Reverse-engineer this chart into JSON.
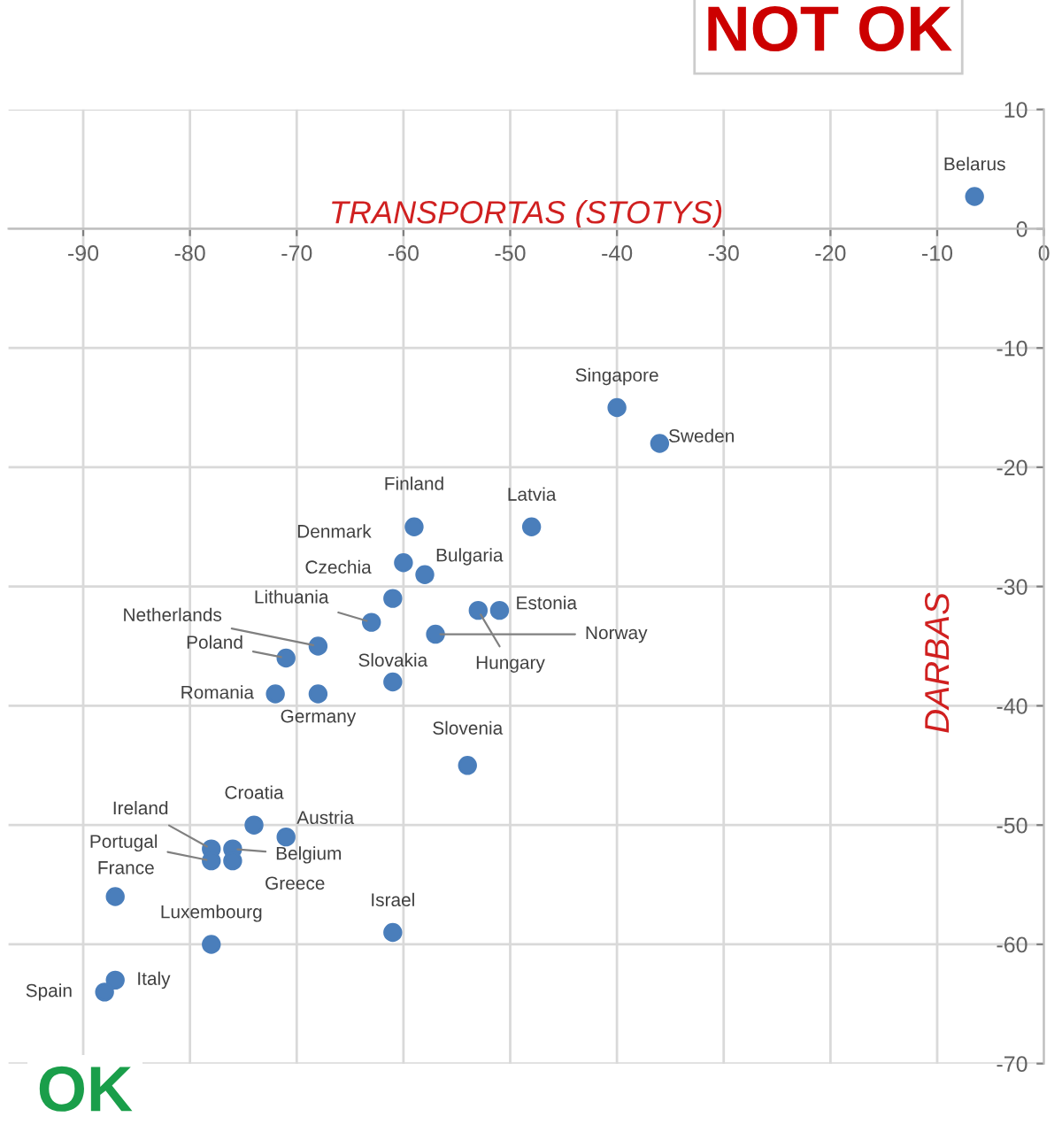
{
  "chart_data": {
    "type": "scatter",
    "xlabel": "TRANSPORTAS (STOTYS)",
    "ylabel": "DARBAS",
    "annotations": [
      "NOT OK",
      "OK"
    ],
    "xlim": [
      -97,
      0
    ],
    "ylim": [
      -70,
      10
    ],
    "xticks": [
      -90,
      -80,
      -70,
      -60,
      -50,
      -40,
      -30,
      -20,
      -10,
      0
    ],
    "yticks": [
      -70,
      -60,
      -50,
      -40,
      -30,
      -20,
      -10,
      0,
      10
    ],
    "grid": true,
    "marker": "circle",
    "legend": false,
    "series": [
      {
        "name": "Belarus",
        "color": "#4a7ebb",
        "x": [
          -6.5
        ],
        "values": [
          2.7
        ]
      },
      {
        "name": "Singapore",
        "color": "#4a7ebb",
        "x": [
          -40
        ],
        "values": [
          -15
        ]
      },
      {
        "name": "Sweden",
        "color": "#4a7ebb",
        "x": [
          -36
        ],
        "values": [
          -18
        ]
      },
      {
        "name": "Latvia",
        "color": "#4a7ebb",
        "x": [
          -48
        ],
        "values": [
          -25
        ]
      },
      {
        "name": "Finland",
        "color": "#4a7ebb",
        "x": [
          -59
        ],
        "values": [
          -25
        ]
      },
      {
        "name": "Denmark",
        "color": "#4a7ebb",
        "x": [
          -60
        ],
        "values": [
          -28
        ]
      },
      {
        "name": "Bulgaria",
        "color": "#4a7ebb",
        "x": [
          -58
        ],
        "values": [
          -29
        ]
      },
      {
        "name": "Czechia",
        "color": "#4a7ebb",
        "x": [
          -61
        ],
        "values": [
          -31
        ]
      },
      {
        "name": "Lithuania",
        "color": "#4a7ebb",
        "x": [
          -63
        ],
        "values": [
          -33
        ]
      },
      {
        "name": "Estonia",
        "color": "#4a7ebb",
        "x": [
          -51
        ],
        "values": [
          -32
        ]
      },
      {
        "name": "Hungary",
        "color": "#4a7ebb",
        "x": [
          -53
        ],
        "values": [
          -32
        ]
      },
      {
        "name": "Norway",
        "color": "#4a7ebb",
        "x": [
          -57
        ],
        "values": [
          -34
        ]
      },
      {
        "name": "Netherlands",
        "color": "#4a7ebb",
        "x": [
          -68
        ],
        "values": [
          -35
        ]
      },
      {
        "name": "Poland",
        "color": "#4a7ebb",
        "x": [
          -71
        ],
        "values": [
          -36
        ]
      },
      {
        "name": "Slovakia",
        "color": "#4a7ebb",
        "x": [
          -61
        ],
        "values": [
          -38
        ]
      },
      {
        "name": "Romania",
        "color": "#4a7ebb",
        "x": [
          -72
        ],
        "values": [
          -39
        ]
      },
      {
        "name": "Germany",
        "color": "#4a7ebb",
        "x": [
          -68
        ],
        "values": [
          -39
        ]
      },
      {
        "name": "Slovenia",
        "color": "#4a7ebb",
        "x": [
          -54
        ],
        "values": [
          -45
        ]
      },
      {
        "name": "Croatia",
        "color": "#4a7ebb",
        "x": [
          -74
        ],
        "values": [
          -50
        ]
      },
      {
        "name": "Austria",
        "color": "#4a7ebb",
        "x": [
          -71
        ],
        "values": [
          -51
        ]
      },
      {
        "name": "Ireland",
        "color": "#4a7ebb",
        "x": [
          -78
        ],
        "values": [
          -52
        ]
      },
      {
        "name": "Portugal",
        "color": "#4a7ebb",
        "x": [
          -78
        ],
        "values": [
          -53
        ]
      },
      {
        "name": "Belgium",
        "color": "#4a7ebb",
        "x": [
          -76
        ],
        "values": [
          -52
        ]
      },
      {
        "name": "Greece",
        "color": "#4a7ebb",
        "x": [
          -76
        ],
        "values": [
          -53
        ]
      },
      {
        "name": "France",
        "color": "#4a7ebb",
        "x": [
          -87
        ],
        "values": [
          -56
        ]
      },
      {
        "name": "Luxembourg",
        "color": "#4a7ebb",
        "x": [
          -78
        ],
        "values": [
          -60
        ]
      },
      {
        "name": "Israel",
        "color": "#4a7ebb",
        "x": [
          -61
        ],
        "values": [
          -59
        ]
      },
      {
        "name": "Italy",
        "color": "#4a7ebb",
        "x": [
          -87
        ],
        "values": [
          -63
        ]
      },
      {
        "name": "Spain",
        "color": "#4a7ebb",
        "x": [
          -88
        ],
        "values": [
          -64
        ]
      }
    ]
  }
}
